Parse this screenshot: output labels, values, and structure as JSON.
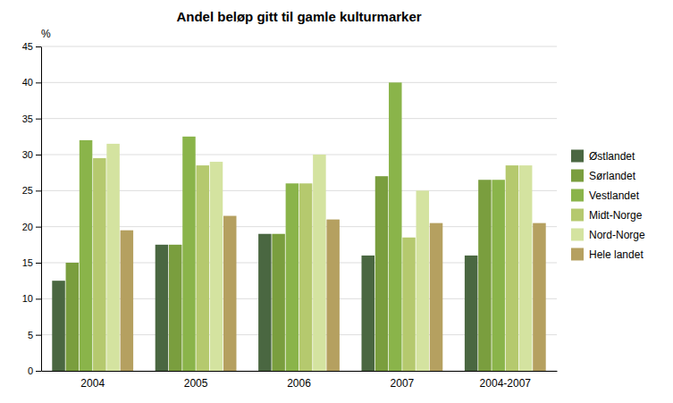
{
  "chart_data": {
    "type": "bar",
    "title": "Andel beløp gitt til gamle kulturmarker",
    "ylabel": "%",
    "categories": [
      "2004",
      "2005",
      "2006",
      "2007",
      "2004-2007"
    ],
    "series": [
      {
        "name": "Østlandet",
        "color": "#4a6741",
        "values": [
          12.5,
          17.5,
          19,
          16,
          16
        ]
      },
      {
        "name": "Sørlandet",
        "color": "#7a9e3e",
        "values": [
          15,
          17.5,
          19,
          27,
          26.5
        ]
      },
      {
        "name": "Vestlandet",
        "color": "#8ab44a",
        "values": [
          32,
          32.5,
          26,
          40,
          26.5
        ]
      },
      {
        "name": "Midt-Norge",
        "color": "#b5c96e",
        "values": [
          29.5,
          28.5,
          26,
          18.5,
          28.5
        ]
      },
      {
        "name": "Nord-Norge",
        "color": "#d4e3a0",
        "values": [
          31.5,
          29,
          30,
          25,
          28.5
        ]
      },
      {
        "name": "Hele landet",
        "color": "#b5a060",
        "values": [
          19.5,
          21.5,
          21,
          20.5,
          20.5
        ]
      }
    ],
    "ylim": [
      0,
      45
    ],
    "yticks": [
      0,
      5,
      10,
      15,
      20,
      25,
      30,
      35,
      40,
      45
    ],
    "grid": true,
    "legend": "right"
  }
}
